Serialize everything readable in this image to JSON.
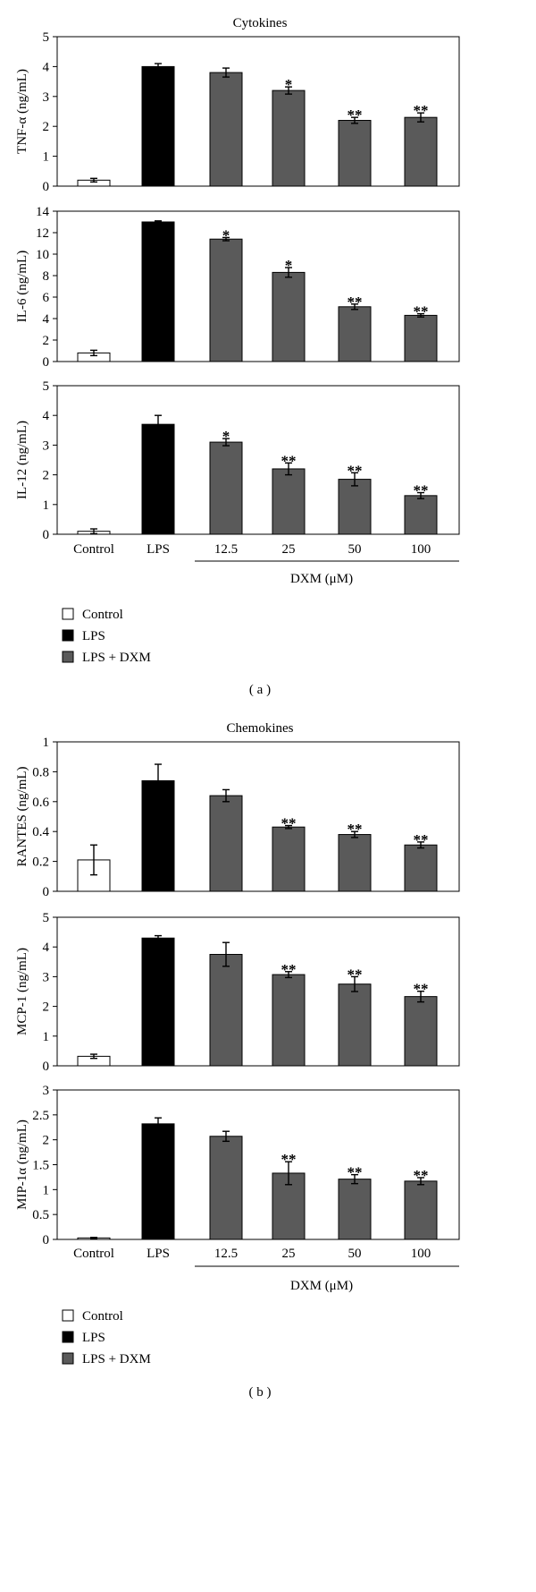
{
  "colors": {
    "control": "#ffffff",
    "lps": "#000000",
    "lps_dxm": "#5a5a5a"
  },
  "chart_data": [
    {
      "type": "bar",
      "figure": "a",
      "title": "Cytokines",
      "panel_label": "( a )",
      "categories": [
        "Control",
        "LPS",
        "12.5",
        "25",
        "50",
        "100"
      ],
      "group_label": "DXM (μM)",
      "legend": [
        "Control",
        "LPS",
        "LPS + DXM"
      ],
      "panels": [
        {
          "ylabel": "TNF-α (ng/mL)",
          "ylim": [
            0,
            5
          ],
          "yticks": [
            0,
            1,
            2,
            3,
            4,
            5
          ],
          "values": [
            0.2,
            4.0,
            3.8,
            3.2,
            2.2,
            2.3
          ],
          "errors": [
            0.06,
            0.1,
            0.15,
            0.12,
            0.1,
            0.15
          ],
          "sig": [
            "",
            "",
            "",
            "*",
            "**",
            "**"
          ]
        },
        {
          "ylabel": "IL-6 (ng/mL)",
          "ylim": [
            0,
            14
          ],
          "yticks": [
            0,
            2,
            4,
            6,
            8,
            10,
            12,
            14
          ],
          "values": [
            0.8,
            13.0,
            11.4,
            8.3,
            5.1,
            4.3
          ],
          "errors": [
            0.25,
            0.1,
            0.15,
            0.45,
            0.25,
            0.15
          ],
          "sig": [
            "",
            "",
            "*",
            "*",
            "**",
            "**"
          ]
        },
        {
          "ylabel": "IL-12 (ng/mL)",
          "ylim": [
            0,
            5
          ],
          "yticks": [
            0,
            1,
            2,
            3,
            4,
            5
          ],
          "values": [
            0.1,
            3.7,
            3.1,
            2.2,
            1.85,
            1.3
          ],
          "errors": [
            0.08,
            0.3,
            0.12,
            0.2,
            0.22,
            0.1
          ],
          "sig": [
            "",
            "",
            "*",
            "**",
            "**",
            "**"
          ]
        }
      ]
    },
    {
      "type": "bar",
      "figure": "b",
      "title": "Chemokines",
      "panel_label": "( b )",
      "categories": [
        "Control",
        "LPS",
        "12.5",
        "25",
        "50",
        "100"
      ],
      "group_label": "DXM (μM)",
      "legend": [
        "Control",
        "LPS",
        "LPS + DXM"
      ],
      "panels": [
        {
          "ylabel": "RANTES (ng/mL)",
          "ylim": [
            0,
            1
          ],
          "yticks": [
            0,
            0.2,
            0.4,
            0.6,
            0.8,
            1
          ],
          "values": [
            0.21,
            0.74,
            0.64,
            0.43,
            0.38,
            0.31
          ],
          "errors": [
            0.1,
            0.11,
            0.04,
            0.01,
            0.02,
            0.02
          ],
          "sig": [
            "",
            "",
            "",
            "**",
            "**",
            "**"
          ]
        },
        {
          "ylabel": "MCP-1 (ng/mL)",
          "ylim": [
            0,
            5
          ],
          "yticks": [
            0,
            1,
            2,
            3,
            4,
            5
          ],
          "values": [
            0.32,
            4.3,
            3.75,
            3.07,
            2.75,
            2.33
          ],
          "errors": [
            0.07,
            0.08,
            0.4,
            0.1,
            0.25,
            0.18
          ],
          "sig": [
            "",
            "",
            "",
            "**",
            "**",
            "**"
          ]
        },
        {
          "ylabel": "MIP-1α (ng/mL)",
          "ylim": [
            0,
            3
          ],
          "yticks": [
            0,
            0.5,
            1,
            1.5,
            2,
            2.5,
            3
          ],
          "values": [
            0.03,
            2.32,
            2.07,
            1.33,
            1.21,
            1.17
          ],
          "errors": [
            0.01,
            0.12,
            0.1,
            0.23,
            0.09,
            0.07
          ],
          "sig": [
            "",
            "",
            "",
            "**",
            "**",
            "**"
          ]
        }
      ]
    }
  ]
}
